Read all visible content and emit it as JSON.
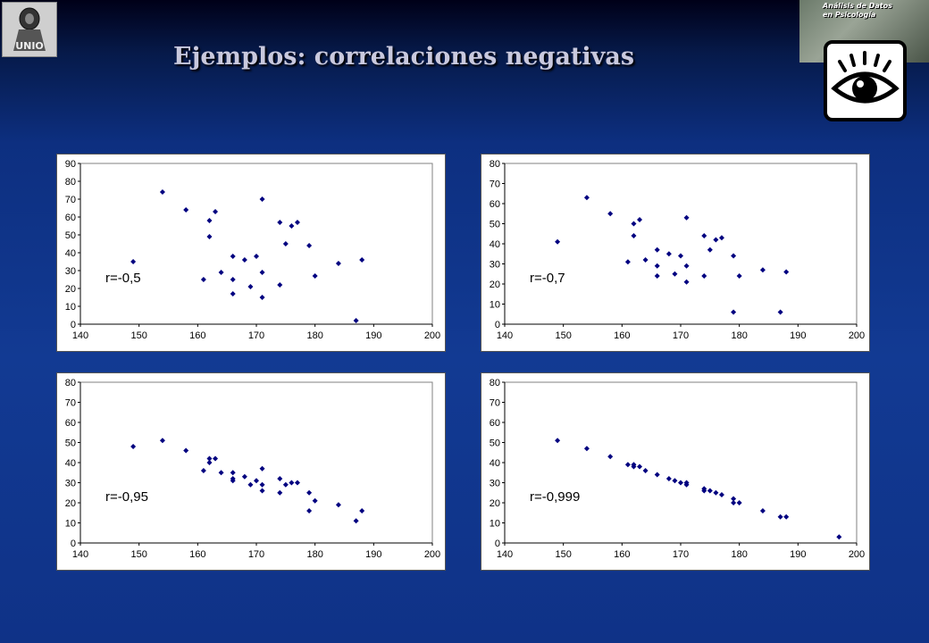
{
  "title": "Ejemplos: correlaciones negativas",
  "logo_left": {
    "text": "UNIO",
    "icon": "university-logo"
  },
  "banner": {
    "line1": "Análisis de Datos",
    "line2": "en Psicología"
  },
  "eye_icon": "eye-icon",
  "colors": {
    "marker": "#000080",
    "title": "#c9c9de"
  },
  "chart_data": [
    {
      "type": "scatter",
      "annotation": "r=-0,5",
      "xlim": [
        140,
        200
      ],
      "ylim": [
        0,
        90
      ],
      "xticks": [
        "140",
        "150",
        "160",
        "170",
        "180",
        "190",
        "200"
      ],
      "yticks": [
        "0",
        "10",
        "20",
        "30",
        "40",
        "50",
        "60",
        "70",
        "80",
        "90"
      ],
      "points": [
        [
          149,
          35
        ],
        [
          154,
          74
        ],
        [
          158,
          64
        ],
        [
          161,
          25
        ],
        [
          162,
          58
        ],
        [
          162,
          49
        ],
        [
          163,
          63
        ],
        [
          164,
          29
        ],
        [
          166,
          38
        ],
        [
          166,
          25
        ],
        [
          166,
          17
        ],
        [
          168,
          36
        ],
        [
          169,
          21
        ],
        [
          170,
          38
        ],
        [
          171,
          70
        ],
        [
          171,
          29
        ],
        [
          171,
          15
        ],
        [
          174,
          57
        ],
        [
          174,
          22
        ],
        [
          175,
          45
        ],
        [
          176,
          55
        ],
        [
          177,
          57
        ],
        [
          179,
          44
        ],
        [
          180,
          27
        ],
        [
          184,
          34
        ],
        [
          187,
          2
        ],
        [
          188,
          36
        ]
      ]
    },
    {
      "type": "scatter",
      "annotation": "r=-0,7",
      "xlim": [
        140,
        200
      ],
      "ylim": [
        0,
        80
      ],
      "xticks": [
        "140",
        "150",
        "160",
        "170",
        "180",
        "190",
        "200"
      ],
      "yticks": [
        "0",
        "10",
        "20",
        "30",
        "40",
        "50",
        "60",
        "70",
        "80"
      ],
      "points": [
        [
          149,
          41
        ],
        [
          154,
          63
        ],
        [
          158,
          55
        ],
        [
          161,
          31
        ],
        [
          162,
          50
        ],
        [
          162,
          44
        ],
        [
          163,
          52
        ],
        [
          164,
          32
        ],
        [
          166,
          37
        ],
        [
          166,
          29
        ],
        [
          166,
          24
        ],
        [
          168,
          35
        ],
        [
          169,
          25
        ],
        [
          170,
          34
        ],
        [
          171,
          53
        ],
        [
          171,
          29
        ],
        [
          171,
          21
        ],
        [
          174,
          44
        ],
        [
          174,
          24
        ],
        [
          175,
          37
        ],
        [
          176,
          42
        ],
        [
          177,
          43
        ],
        [
          179,
          34
        ],
        [
          179,
          6
        ],
        [
          180,
          24
        ],
        [
          184,
          27
        ],
        [
          187,
          6
        ],
        [
          188,
          26
        ]
      ]
    },
    {
      "type": "scatter",
      "annotation": "r=-0,95",
      "xlim": [
        140,
        200
      ],
      "ylim": [
        0,
        80
      ],
      "xticks": [
        "140",
        "150",
        "160",
        "170",
        "180",
        "190",
        "200"
      ],
      "yticks": [
        "0",
        "10",
        "20",
        "30",
        "40",
        "50",
        "60",
        "70",
        "80"
      ],
      "points": [
        [
          149,
          48
        ],
        [
          154,
          51
        ],
        [
          158,
          46
        ],
        [
          161,
          36
        ],
        [
          162,
          42
        ],
        [
          162,
          40
        ],
        [
          163,
          42
        ],
        [
          164,
          35
        ],
        [
          166,
          35
        ],
        [
          166,
          32
        ],
        [
          166,
          31
        ],
        [
          168,
          33
        ],
        [
          169,
          29
        ],
        [
          170,
          31
        ],
        [
          171,
          37
        ],
        [
          171,
          29
        ],
        [
          171,
          26
        ],
        [
          174,
          32
        ],
        [
          174,
          25
        ],
        [
          175,
          29
        ],
        [
          176,
          30
        ],
        [
          177,
          30
        ],
        [
          179,
          25
        ],
        [
          179,
          16
        ],
        [
          180,
          21
        ],
        [
          184,
          19
        ],
        [
          187,
          11
        ],
        [
          188,
          16
        ]
      ]
    },
    {
      "type": "scatter",
      "annotation": "r=-0,999",
      "xlim": [
        140,
        200
      ],
      "ylim": [
        0,
        80
      ],
      "xticks": [
        "140",
        "150",
        "160",
        "170",
        "180",
        "190",
        "200"
      ],
      "yticks": [
        "0",
        "10",
        "20",
        "30",
        "40",
        "50",
        "60",
        "70",
        "80"
      ],
      "points": [
        [
          149,
          51
        ],
        [
          154,
          47
        ],
        [
          158,
          43
        ],
        [
          161,
          39
        ],
        [
          162,
          39
        ],
        [
          162,
          38
        ],
        [
          163,
          38
        ],
        [
          164,
          36
        ],
        [
          166,
          34
        ],
        [
          168,
          32
        ],
        [
          169,
          31
        ],
        [
          170,
          30
        ],
        [
          171,
          30
        ],
        [
          171,
          29
        ],
        [
          174,
          27
        ],
        [
          174,
          26
        ],
        [
          175,
          26
        ],
        [
          176,
          25
        ],
        [
          177,
          24
        ],
        [
          179,
          22
        ],
        [
          179,
          20
        ],
        [
          180,
          20
        ],
        [
          184,
          16
        ],
        [
          187,
          13
        ],
        [
          188,
          13
        ],
        [
          197,
          3
        ]
      ]
    }
  ]
}
